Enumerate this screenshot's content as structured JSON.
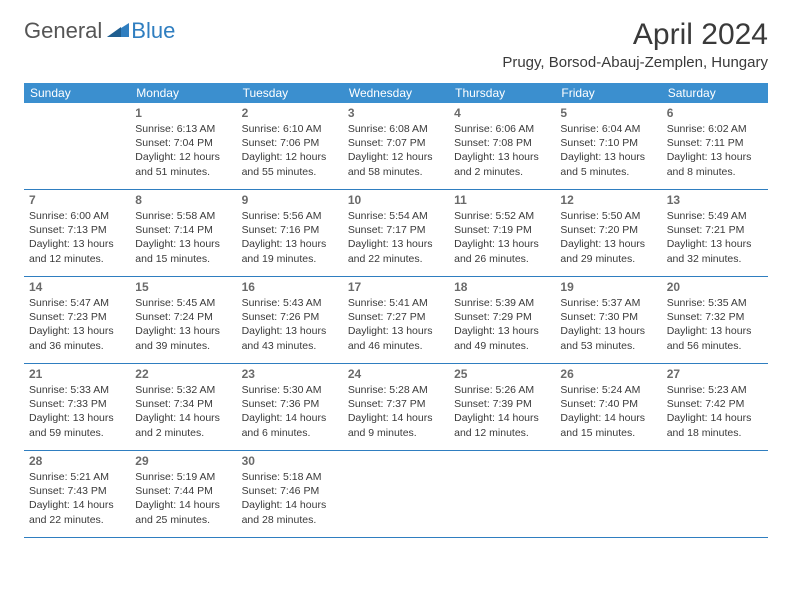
{
  "logo": {
    "part1": "General",
    "part2": "Blue"
  },
  "title": "April 2024",
  "location": "Prugy, Borsod-Abauj-Zemplen, Hungary",
  "colors": {
    "header_bg": "#3b8fcf",
    "accent": "#2f7ec0",
    "text": "#3a3a3a",
    "daynum": "#6a6a6a"
  },
  "days_of_week": [
    "Sunday",
    "Monday",
    "Tuesday",
    "Wednesday",
    "Thursday",
    "Friday",
    "Saturday"
  ],
  "weeks": [
    [
      null,
      {
        "n": "1",
        "sr": "Sunrise: 6:13 AM",
        "ss": "Sunset: 7:04 PM",
        "d1": "Daylight: 12 hours",
        "d2": "and 51 minutes."
      },
      {
        "n": "2",
        "sr": "Sunrise: 6:10 AM",
        "ss": "Sunset: 7:06 PM",
        "d1": "Daylight: 12 hours",
        "d2": "and 55 minutes."
      },
      {
        "n": "3",
        "sr": "Sunrise: 6:08 AM",
        "ss": "Sunset: 7:07 PM",
        "d1": "Daylight: 12 hours",
        "d2": "and 58 minutes."
      },
      {
        "n": "4",
        "sr": "Sunrise: 6:06 AM",
        "ss": "Sunset: 7:08 PM",
        "d1": "Daylight: 13 hours",
        "d2": "and 2 minutes."
      },
      {
        "n": "5",
        "sr": "Sunrise: 6:04 AM",
        "ss": "Sunset: 7:10 PM",
        "d1": "Daylight: 13 hours",
        "d2": "and 5 minutes."
      },
      {
        "n": "6",
        "sr": "Sunrise: 6:02 AM",
        "ss": "Sunset: 7:11 PM",
        "d1": "Daylight: 13 hours",
        "d2": "and 8 minutes."
      }
    ],
    [
      {
        "n": "7",
        "sr": "Sunrise: 6:00 AM",
        "ss": "Sunset: 7:13 PM",
        "d1": "Daylight: 13 hours",
        "d2": "and 12 minutes."
      },
      {
        "n": "8",
        "sr": "Sunrise: 5:58 AM",
        "ss": "Sunset: 7:14 PM",
        "d1": "Daylight: 13 hours",
        "d2": "and 15 minutes."
      },
      {
        "n": "9",
        "sr": "Sunrise: 5:56 AM",
        "ss": "Sunset: 7:16 PM",
        "d1": "Daylight: 13 hours",
        "d2": "and 19 minutes."
      },
      {
        "n": "10",
        "sr": "Sunrise: 5:54 AM",
        "ss": "Sunset: 7:17 PM",
        "d1": "Daylight: 13 hours",
        "d2": "and 22 minutes."
      },
      {
        "n": "11",
        "sr": "Sunrise: 5:52 AM",
        "ss": "Sunset: 7:19 PM",
        "d1": "Daylight: 13 hours",
        "d2": "and 26 minutes."
      },
      {
        "n": "12",
        "sr": "Sunrise: 5:50 AM",
        "ss": "Sunset: 7:20 PM",
        "d1": "Daylight: 13 hours",
        "d2": "and 29 minutes."
      },
      {
        "n": "13",
        "sr": "Sunrise: 5:49 AM",
        "ss": "Sunset: 7:21 PM",
        "d1": "Daylight: 13 hours",
        "d2": "and 32 minutes."
      }
    ],
    [
      {
        "n": "14",
        "sr": "Sunrise: 5:47 AM",
        "ss": "Sunset: 7:23 PM",
        "d1": "Daylight: 13 hours",
        "d2": "and 36 minutes."
      },
      {
        "n": "15",
        "sr": "Sunrise: 5:45 AM",
        "ss": "Sunset: 7:24 PM",
        "d1": "Daylight: 13 hours",
        "d2": "and 39 minutes."
      },
      {
        "n": "16",
        "sr": "Sunrise: 5:43 AM",
        "ss": "Sunset: 7:26 PM",
        "d1": "Daylight: 13 hours",
        "d2": "and 43 minutes."
      },
      {
        "n": "17",
        "sr": "Sunrise: 5:41 AM",
        "ss": "Sunset: 7:27 PM",
        "d1": "Daylight: 13 hours",
        "d2": "and 46 minutes."
      },
      {
        "n": "18",
        "sr": "Sunrise: 5:39 AM",
        "ss": "Sunset: 7:29 PM",
        "d1": "Daylight: 13 hours",
        "d2": "and 49 minutes."
      },
      {
        "n": "19",
        "sr": "Sunrise: 5:37 AM",
        "ss": "Sunset: 7:30 PM",
        "d1": "Daylight: 13 hours",
        "d2": "and 53 minutes."
      },
      {
        "n": "20",
        "sr": "Sunrise: 5:35 AM",
        "ss": "Sunset: 7:32 PM",
        "d1": "Daylight: 13 hours",
        "d2": "and 56 minutes."
      }
    ],
    [
      {
        "n": "21",
        "sr": "Sunrise: 5:33 AM",
        "ss": "Sunset: 7:33 PM",
        "d1": "Daylight: 13 hours",
        "d2": "and 59 minutes."
      },
      {
        "n": "22",
        "sr": "Sunrise: 5:32 AM",
        "ss": "Sunset: 7:34 PM",
        "d1": "Daylight: 14 hours",
        "d2": "and 2 minutes."
      },
      {
        "n": "23",
        "sr": "Sunrise: 5:30 AM",
        "ss": "Sunset: 7:36 PM",
        "d1": "Daylight: 14 hours",
        "d2": "and 6 minutes."
      },
      {
        "n": "24",
        "sr": "Sunrise: 5:28 AM",
        "ss": "Sunset: 7:37 PM",
        "d1": "Daylight: 14 hours",
        "d2": "and 9 minutes."
      },
      {
        "n": "25",
        "sr": "Sunrise: 5:26 AM",
        "ss": "Sunset: 7:39 PM",
        "d1": "Daylight: 14 hours",
        "d2": "and 12 minutes."
      },
      {
        "n": "26",
        "sr": "Sunrise: 5:24 AM",
        "ss": "Sunset: 7:40 PM",
        "d1": "Daylight: 14 hours",
        "d2": "and 15 minutes."
      },
      {
        "n": "27",
        "sr": "Sunrise: 5:23 AM",
        "ss": "Sunset: 7:42 PM",
        "d1": "Daylight: 14 hours",
        "d2": "and 18 minutes."
      }
    ],
    [
      {
        "n": "28",
        "sr": "Sunrise: 5:21 AM",
        "ss": "Sunset: 7:43 PM",
        "d1": "Daylight: 14 hours",
        "d2": "and 22 minutes."
      },
      {
        "n": "29",
        "sr": "Sunrise: 5:19 AM",
        "ss": "Sunset: 7:44 PM",
        "d1": "Daylight: 14 hours",
        "d2": "and 25 minutes."
      },
      {
        "n": "30",
        "sr": "Sunrise: 5:18 AM",
        "ss": "Sunset: 7:46 PM",
        "d1": "Daylight: 14 hours",
        "d2": "and 28 minutes."
      },
      null,
      null,
      null,
      null
    ]
  ]
}
